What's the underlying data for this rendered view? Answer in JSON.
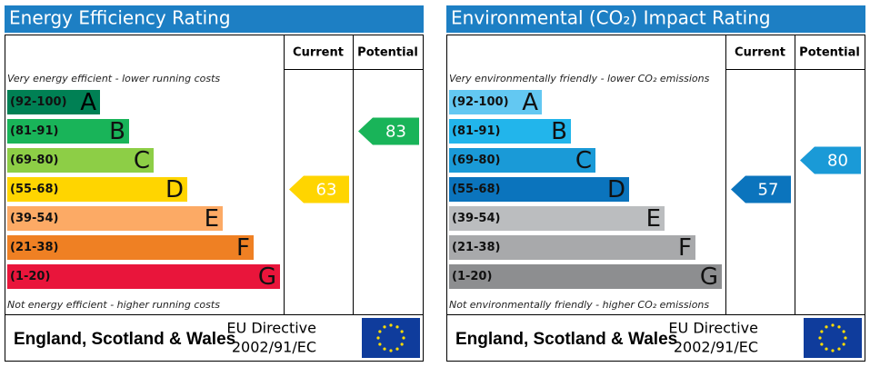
{
  "chart_data": [
    {
      "type": "epc-rating",
      "title": "Energy Efficiency Rating",
      "columns": [
        "Current",
        "Potential"
      ],
      "top_note": "Very energy efficient - lower running costs",
      "bottom_note": "Not energy efficient - higher running costs",
      "categories": [
        "(92-100)",
        "(81-91)",
        "(69-80)",
        "(55-68)",
        "(39-54)",
        "(21-38)",
        "(1-20)"
      ],
      "letters": [
        "A",
        "B",
        "C",
        "D",
        "E",
        "F",
        "G"
      ],
      "colors": [
        "#008054",
        "#19b459",
        "#8dce46",
        "#ffd500",
        "#fcaa65",
        "#ef8023",
        "#e9153b"
      ],
      "current": 63,
      "potential": 83,
      "region": "England, Scotland & Wales",
      "directive": [
        "EU Directive",
        "2002/91/EC"
      ]
    },
    {
      "type": "epc-rating",
      "title": "Environmental (CO₂) Impact Rating",
      "columns": [
        "Current",
        "Potential"
      ],
      "top_note": "Very environmentally friendly - lower CO₂ emissions",
      "bottom_note": "Not environmentally friendly - higher CO₂ emissions",
      "categories": [
        "(92-100)",
        "(81-91)",
        "(69-80)",
        "(55-68)",
        "(39-54)",
        "(21-38)",
        "(1-20)"
      ],
      "letters": [
        "A",
        "B",
        "C",
        "D",
        "E",
        "F",
        "G"
      ],
      "colors": [
        "#63c8f2",
        "#22b5eb",
        "#1a9ad7",
        "#0b74bd",
        "#bbbdbf",
        "#a8a9ab",
        "#8d8e90"
      ],
      "current": 57,
      "potential": 80,
      "region": "England, Scotland & Wales",
      "directive": [
        "EU Directive",
        "2002/91/EC"
      ]
    }
  ]
}
